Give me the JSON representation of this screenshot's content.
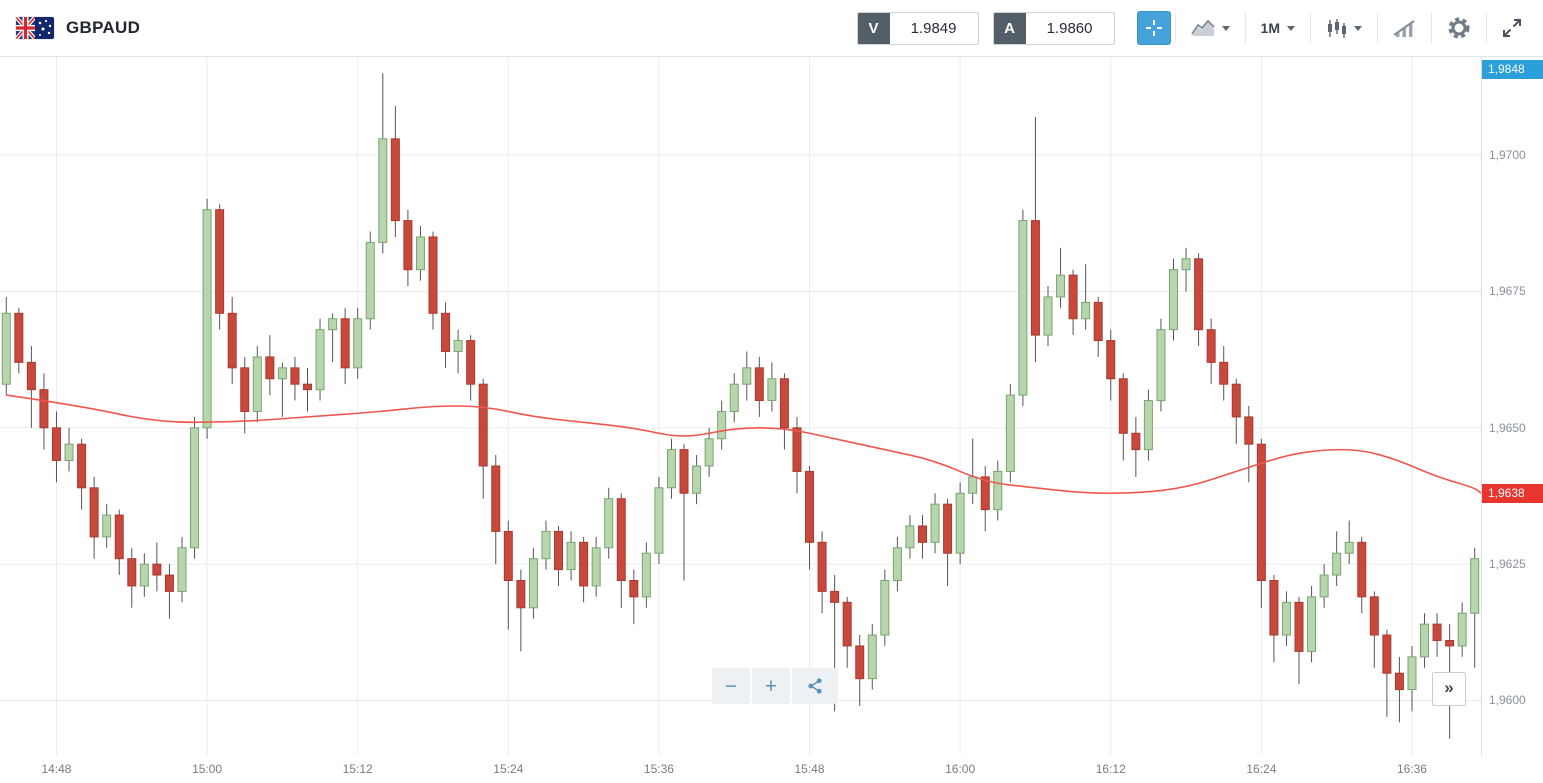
{
  "header": {
    "symbol": "GBPAUD",
    "flag_pair": [
      "GB",
      "AU"
    ],
    "sell": {
      "label": "V",
      "value": "1.9849"
    },
    "buy": {
      "label": "A",
      "value": "1.9860"
    },
    "timeframe": "1M"
  },
  "controls": {
    "zoom_out": "−",
    "zoom_in": "+",
    "scroll_right": "»"
  },
  "colors": {
    "up_fill": "#b7d6ae",
    "up_border": "#79a471",
    "down_fill": "#c8493c",
    "down_border": "#a93a2f",
    "wick": "#555555",
    "ma_line": "#f0564e",
    "grid": "#ececec",
    "accent_blue": "#45a3da",
    "price_label_blue": "#2b9fd9",
    "price_label_red": "#e8352e"
  },
  "chart_data": {
    "type": "candlestick",
    "symbol": "GBPAUD",
    "interval": "1M",
    "start_time": "14:44",
    "interval_minutes": 1,
    "ylim": [
      1.959,
      1.9718
    ],
    "price_ticks": [
      {
        "value": 1.97,
        "label": "1,9700"
      },
      {
        "value": 1.9675,
        "label": "1,9675"
      },
      {
        "value": 1.965,
        "label": "1,9650"
      },
      {
        "value": 1.9625,
        "label": "1,9625"
      },
      {
        "value": 1.96,
        "label": "1,9600"
      }
    ],
    "time_ticks": [
      {
        "index": 4,
        "label": "14:48"
      },
      {
        "index": 16,
        "label": "15:00"
      },
      {
        "index": 28,
        "label": "15:12"
      },
      {
        "index": 40,
        "label": "15:24"
      },
      {
        "index": 52,
        "label": "15:36"
      },
      {
        "index": 64,
        "label": "15:48"
      },
      {
        "index": 76,
        "label": "16:00"
      },
      {
        "index": 88,
        "label": "16:12"
      },
      {
        "index": 100,
        "label": "16:24"
      },
      {
        "index": 112,
        "label": "16:36"
      }
    ],
    "last_price_label": {
      "label": "1,9848",
      "value": 1.9848,
      "pinned": "top"
    },
    "ma_price_label": {
      "label": "1,9638",
      "value": 1.9638
    },
    "ma_points": [
      [
        0,
        1.9656
      ],
      [
        6,
        1.9654
      ],
      [
        12,
        1.9651
      ],
      [
        18,
        1.9651
      ],
      [
        24,
        1.9652
      ],
      [
        30,
        1.9653
      ],
      [
        34,
        1.9654
      ],
      [
        38,
        1.9654
      ],
      [
        42,
        1.9652
      ],
      [
        46,
        1.9651
      ],
      [
        50,
        1.965
      ],
      [
        54,
        1.9648
      ],
      [
        58,
        1.965
      ],
      [
        62,
        1.965
      ],
      [
        66,
        1.9648
      ],
      [
        70,
        1.9646
      ],
      [
        74,
        1.9644
      ],
      [
        78,
        1.964
      ],
      [
        82,
        1.9639
      ],
      [
        86,
        1.9638
      ],
      [
        90,
        1.9638
      ],
      [
        94,
        1.9639
      ],
      [
        98,
        1.9642
      ],
      [
        102,
        1.9645
      ],
      [
        105,
        1.9646
      ],
      [
        108,
        1.9646
      ],
      [
        111,
        1.9644
      ],
      [
        114,
        1.9641
      ],
      [
        117,
        1.9639
      ]
    ],
    "candles": [
      [
        1.9658,
        1.9674,
        1.9656,
        1.9671
      ],
      [
        1.9671,
        1.9672,
        1.966,
        1.9662
      ],
      [
        1.9662,
        1.9665,
        1.965,
        1.9657
      ],
      [
        1.9657,
        1.966,
        1.9646,
        1.965
      ],
      [
        1.965,
        1.9653,
        1.964,
        1.9644
      ],
      [
        1.9644,
        1.965,
        1.9642,
        1.9647
      ],
      [
        1.9647,
        1.9648,
        1.9635,
        1.9639
      ],
      [
        1.9639,
        1.9641,
        1.9626,
        1.963
      ],
      [
        1.963,
        1.9636,
        1.9628,
        1.9634
      ],
      [
        1.9634,
        1.9635,
        1.9623,
        1.9626
      ],
      [
        1.9626,
        1.9628,
        1.9617,
        1.9621
      ],
      [
        1.9621,
        1.9627,
        1.9619,
        1.9625
      ],
      [
        1.9625,
        1.9629,
        1.962,
        1.9623
      ],
      [
        1.9623,
        1.9625,
        1.9615,
        1.962
      ],
      [
        1.962,
        1.963,
        1.9618,
        1.9628
      ],
      [
        1.9628,
        1.9652,
        1.9626,
        1.965
      ],
      [
        1.965,
        1.9692,
        1.9648,
        1.969
      ],
      [
        1.969,
        1.9691,
        1.9668,
        1.9671
      ],
      [
        1.9671,
        1.9674,
        1.9658,
        1.9661
      ],
      [
        1.9661,
        1.9663,
        1.9649,
        1.9653
      ],
      [
        1.9653,
        1.9665,
        1.9651,
        1.9663
      ],
      [
        1.9663,
        1.9667,
        1.9656,
        1.9659
      ],
      [
        1.9659,
        1.9662,
        1.9652,
        1.9661
      ],
      [
        1.9661,
        1.9663,
        1.9655,
        1.9658
      ],
      [
        1.9658,
        1.9661,
        1.9653,
        1.9657
      ],
      [
        1.9657,
        1.967,
        1.9655,
        1.9668
      ],
      [
        1.9668,
        1.9671,
        1.9662,
        1.967
      ],
      [
        1.967,
        1.9672,
        1.9658,
        1.9661
      ],
      [
        1.9661,
        1.9672,
        1.9659,
        1.967
      ],
      [
        1.967,
        1.9686,
        1.9668,
        1.9684
      ],
      [
        1.9684,
        1.9715,
        1.9682,
        1.9703
      ],
      [
        1.9703,
        1.9709,
        1.9685,
        1.9688
      ],
      [
        1.9688,
        1.969,
        1.9676,
        1.9679
      ],
      [
        1.9679,
        1.9687,
        1.9677,
        1.9685
      ],
      [
        1.9685,
        1.9686,
        1.9668,
        1.9671
      ],
      [
        1.9671,
        1.9673,
        1.9661,
        1.9664
      ],
      [
        1.9664,
        1.9668,
        1.966,
        1.9666
      ],
      [
        1.9666,
        1.9667,
        1.9655,
        1.9658
      ],
      [
        1.9658,
        1.9659,
        1.9637,
        1.9643
      ],
      [
        1.9643,
        1.9645,
        1.9625,
        1.9631
      ],
      [
        1.9631,
        1.9633,
        1.9613,
        1.9622
      ],
      [
        1.9622,
        1.9624,
        1.9609,
        1.9617
      ],
      [
        1.9617,
        1.9628,
        1.9615,
        1.9626
      ],
      [
        1.9626,
        1.9633,
        1.9624,
        1.9631
      ],
      [
        1.9631,
        1.9632,
        1.9621,
        1.9624
      ],
      [
        1.9624,
        1.9631,
        1.9622,
        1.9629
      ],
      [
        1.9629,
        1.963,
        1.9618,
        1.9621
      ],
      [
        1.9621,
        1.963,
        1.9619,
        1.9628
      ],
      [
        1.9628,
        1.9639,
        1.9626,
        1.9637
      ],
      [
        1.9637,
        1.9638,
        1.9617,
        1.9622
      ],
      [
        1.9622,
        1.9624,
        1.9614,
        1.9619
      ],
      [
        1.9619,
        1.9629,
        1.9617,
        1.9627
      ],
      [
        1.9627,
        1.9641,
        1.9625,
        1.9639
      ],
      [
        1.9639,
        1.9648,
        1.9637,
        1.9646
      ],
      [
        1.9646,
        1.9647,
        1.9622,
        1.9638
      ],
      [
        1.9638,
        1.9645,
        1.9636,
        1.9643
      ],
      [
        1.9643,
        1.965,
        1.9641,
        1.9648
      ],
      [
        1.9648,
        1.9655,
        1.9646,
        1.9653
      ],
      [
        1.9653,
        1.966,
        1.9651,
        1.9658
      ],
      [
        1.9658,
        1.9664,
        1.9655,
        1.9661
      ],
      [
        1.9661,
        1.9663,
        1.9652,
        1.9655
      ],
      [
        1.9655,
        1.9662,
        1.9653,
        1.9659
      ],
      [
        1.9659,
        1.966,
        1.9646,
        1.965
      ],
      [
        1.965,
        1.9652,
        1.9638,
        1.9642
      ],
      [
        1.9642,
        1.9643,
        1.9624,
        1.9629
      ],
      [
        1.9629,
        1.9631,
        1.9616,
        1.962
      ],
      [
        1.962,
        1.9623,
        1.9598,
        1.9618
      ],
      [
        1.9618,
        1.9619,
        1.9606,
        1.961
      ],
      [
        1.961,
        1.9612,
        1.9599,
        1.9604
      ],
      [
        1.9604,
        1.9614,
        1.9602,
        1.9612
      ],
      [
        1.9612,
        1.9624,
        1.961,
        1.9622
      ],
      [
        1.9622,
        1.963,
        1.962,
        1.9628
      ],
      [
        1.9628,
        1.9634,
        1.9626,
        1.9632
      ],
      [
        1.9632,
        1.9634,
        1.9626,
        1.9629
      ],
      [
        1.9629,
        1.9638,
        1.9627,
        1.9636
      ],
      [
        1.9636,
        1.9637,
        1.9621,
        1.9627
      ],
      [
        1.9627,
        1.964,
        1.9625,
        1.9638
      ],
      [
        1.9638,
        1.9648,
        1.9636,
        1.9641
      ],
      [
        1.9641,
        1.9643,
        1.9631,
        1.9635
      ],
      [
        1.9635,
        1.9644,
        1.9633,
        1.9642
      ],
      [
        1.9642,
        1.9658,
        1.964,
        1.9656
      ],
      [
        1.9656,
        1.969,
        1.9654,
        1.9688
      ],
      [
        1.9688,
        1.9707,
        1.9662,
        1.9667
      ],
      [
        1.9667,
        1.9676,
        1.9665,
        1.9674
      ],
      [
        1.9674,
        1.9683,
        1.9672,
        1.9678
      ],
      [
        1.9678,
        1.9679,
        1.9667,
        1.967
      ],
      [
        1.967,
        1.968,
        1.9668,
        1.9673
      ],
      [
        1.9673,
        1.9674,
        1.9663,
        1.9666
      ],
      [
        1.9666,
        1.9668,
        1.9655,
        1.9659
      ],
      [
        1.9659,
        1.966,
        1.9644,
        1.9649
      ],
      [
        1.9649,
        1.9652,
        1.9641,
        1.9646
      ],
      [
        1.9646,
        1.9657,
        1.9644,
        1.9655
      ],
      [
        1.9655,
        1.967,
        1.9653,
        1.9668
      ],
      [
        1.9668,
        1.9681,
        1.9666,
        1.9679
      ],
      [
        1.9679,
        1.9683,
        1.9675,
        1.9681
      ],
      [
        1.9681,
        1.9682,
        1.9665,
        1.9668
      ],
      [
        1.9668,
        1.967,
        1.9658,
        1.9662
      ],
      [
        1.9662,
        1.9665,
        1.9655,
        1.9658
      ],
      [
        1.9658,
        1.9659,
        1.9647,
        1.9652
      ],
      [
        1.9652,
        1.9654,
        1.964,
        1.9647
      ],
      [
        1.9647,
        1.9648,
        1.9617,
        1.9622
      ],
      [
        1.9622,
        1.9623,
        1.9607,
        1.9612
      ],
      [
        1.9612,
        1.962,
        1.961,
        1.9618
      ],
      [
        1.9618,
        1.9619,
        1.9603,
        1.9609
      ],
      [
        1.9609,
        1.9621,
        1.9607,
        1.9619
      ],
      [
        1.9619,
        1.9625,
        1.9617,
        1.9623
      ],
      [
        1.9623,
        1.9631,
        1.9621,
        1.9627
      ],
      [
        1.9627,
        1.9633,
        1.9625,
        1.9629
      ],
      [
        1.9629,
        1.963,
        1.9616,
        1.9619
      ],
      [
        1.9619,
        1.962,
        1.9606,
        1.9612
      ],
      [
        1.9612,
        1.9613,
        1.9597,
        1.9605
      ],
      [
        1.9605,
        1.9608,
        1.9596,
        1.9602
      ],
      [
        1.9602,
        1.961,
        1.9598,
        1.9608
      ],
      [
        1.9608,
        1.9616,
        1.9606,
        1.9614
      ],
      [
        1.9614,
        1.9616,
        1.9608,
        1.9611
      ],
      [
        1.9611,
        1.9614,
        1.9593,
        1.961
      ],
      [
        1.961,
        1.9618,
        1.9608,
        1.9616
      ],
      [
        1.9616,
        1.9628,
        1.9606,
        1.9626
      ]
    ]
  }
}
